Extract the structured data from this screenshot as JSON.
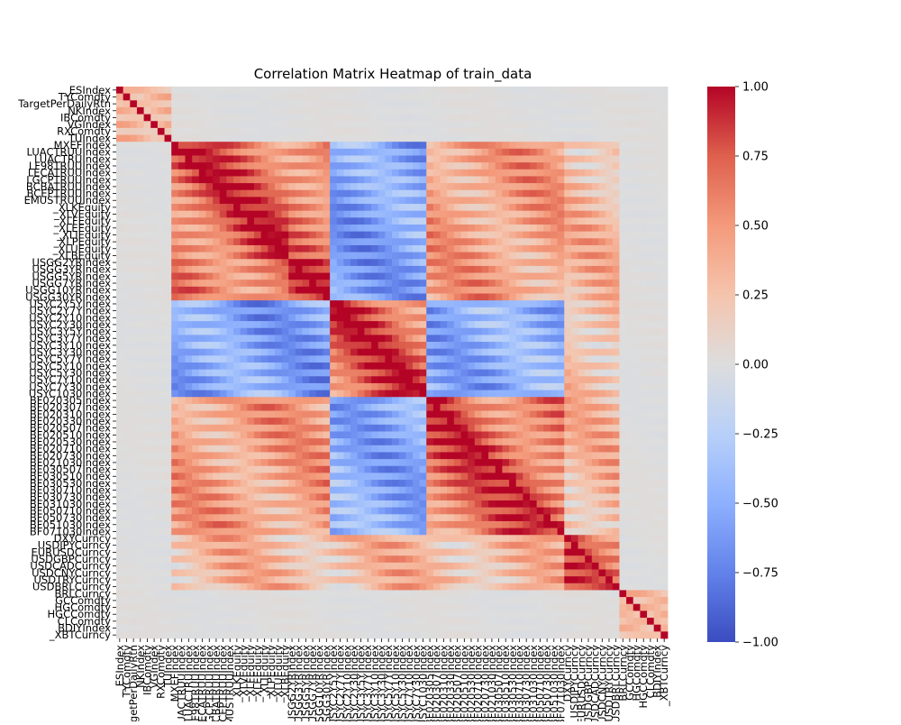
{
  "chart_data": {
    "type": "heatmap",
    "title": "Correlation Matrix Heatmap of train_data",
    "xlabel": "",
    "ylabel": "",
    "colormap": "coolwarm",
    "vmin": -1.0,
    "vmax": 1.0,
    "colorbar_ticks": [
      "1.00",
      "0.75",
      "0.50",
      "0.25",
      "0.00",
      "−0.25",
      "−0.50",
      "−0.75",
      "−1.00"
    ],
    "colorbar_tick_values": [
      1.0,
      0.75,
      0.5,
      0.25,
      0.0,
      -0.25,
      -0.5,
      -0.75,
      -1.0
    ],
    "visible_variable_labels": [
      "_ESIndex",
      "TYComdty",
      "TargetPerDailyRtn",
      "NKIndex",
      "IBComdty",
      "VGIndex",
      "RXComdty",
      "TUIndex",
      "MXEFIndex",
      "LUACTRUUIndex",
      "LUACTRUIndex",
      "LF98TRUUIndex",
      "LECATRUUIndex",
      "LGCPTRUUIndex",
      "BCBATRUUIndex",
      "BCEPTRUUIndex",
      "EMUSTRUUIndex",
      "_XLKEquity",
      "_XLVEquity",
      "_XLFEquity",
      "_XLEEquity",
      "_XLIEquity",
      "_XLPEquity",
      "_XLUEquity",
      "_XLBEquity",
      "USGG2YRIndex",
      "USGG3YRIndex",
      "USGG5YRIndex",
      "USGG7YRIndex",
      "USGG10YRIndex",
      "USGG30YRIndex",
      "USYC2Y5YIndex",
      "USYC2Y7YIndex",
      "USYC2Y10Index",
      "USYC2Y30Index",
      "USYC3Y5YIndex",
      "USYC3Y7YIndex",
      "USYC3Y10Index",
      "USYC3Y30Index",
      "USYC5Y7YIndex",
      "USYC5Y10Index",
      "USYC5Y30Index",
      "USYC7Y10Index",
      "USYC7Y30Index",
      "USYC1030Index",
      "BF020305Index",
      "BF020307Index",
      "BF020310Index",
      "BF020330Index",
      "BF020507Index",
      "BF020510Index",
      "BF020530Index",
      "BF020710Index",
      "BF020730Index",
      "BF021030Index",
      "BF030507Index",
      "BF030510Index",
      "BF030530Index",
      "BF030710Index",
      "BF030730Index",
      "BF031030Index",
      "BF050710Index",
      "BF050730Index",
      "BF051030Index",
      "BF071030Index",
      "DXYCurncy",
      "USDJPYCurncy",
      "EURUSDCurncy",
      "USDGBPCurncy",
      "USDCADCurncy",
      "USDCNYCurncy",
      "USDTRYCurncy",
      "USDBRLCurncy",
      "BRLCurncy",
      "GCComdty",
      "HGComdty",
      "HGCComdty",
      "CLComdty",
      "BDIYIndex",
      "_XBTCurncy"
    ]
  }
}
